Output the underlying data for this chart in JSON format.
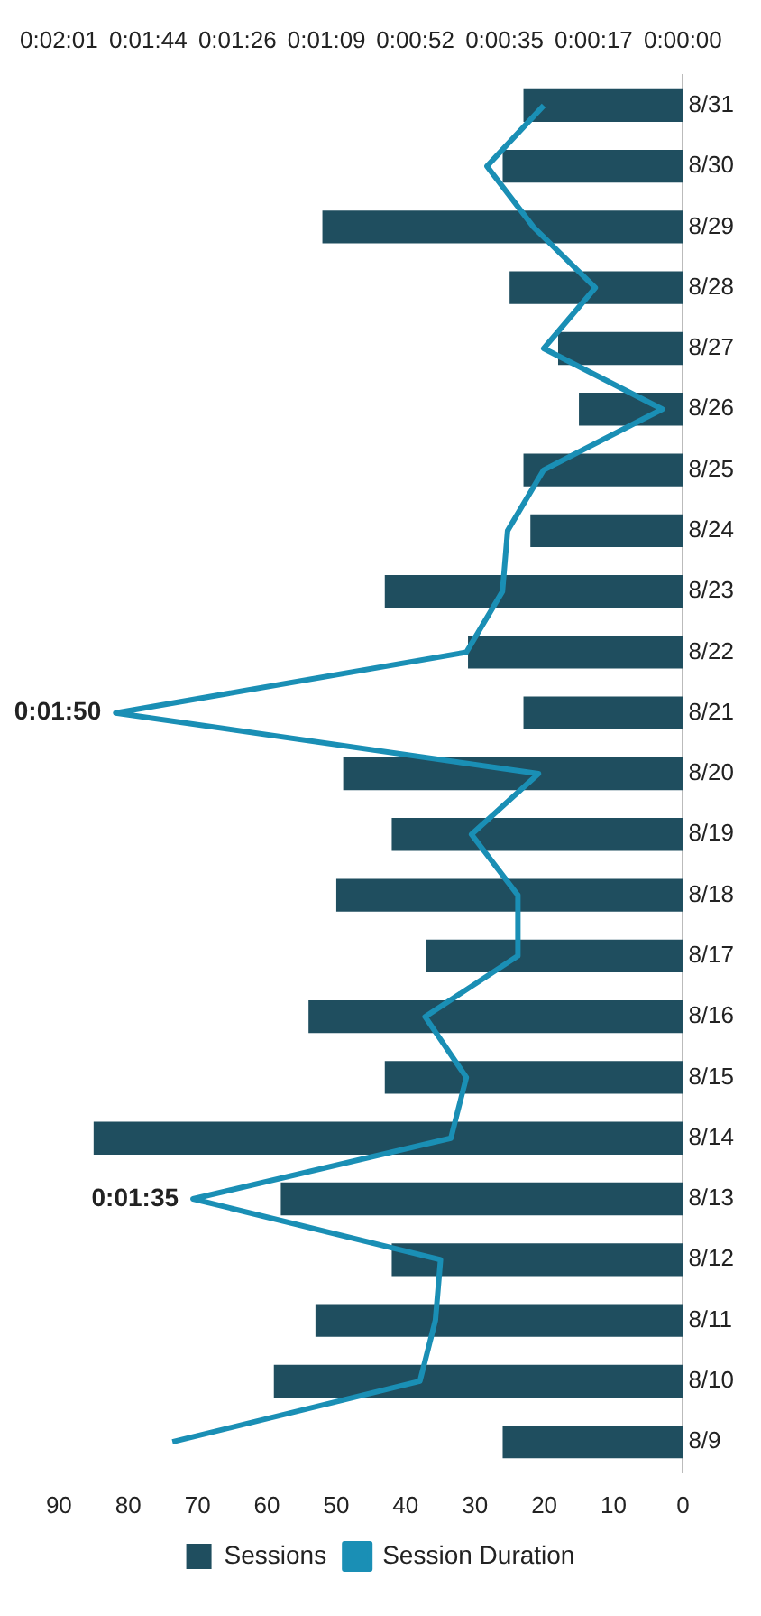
{
  "chart_data": {
    "type": "bar",
    "orientation": "horizontal",
    "categories": [
      "8/31",
      "8/30",
      "8/29",
      "8/28",
      "8/27",
      "8/26",
      "8/25",
      "8/24",
      "8/23",
      "8/22",
      "8/21",
      "8/20",
      "8/19",
      "8/18",
      "8/17",
      "8/16",
      "8/15",
      "8/14",
      "8/13",
      "8/12",
      "8/11",
      "8/10",
      "8/9"
    ],
    "series": [
      {
        "name": "Sessions",
        "color": "#1f4e5f",
        "values": [
          23,
          26,
          52,
          25,
          18,
          15,
          23,
          22,
          43,
          31,
          23,
          49,
          42,
          50,
          37,
          54,
          43,
          85,
          58,
          42,
          53,
          59,
          26
        ]
      },
      {
        "name": "Session Duration",
        "type": "line",
        "axis": "x2",
        "color": "#1a8fb5",
        "marker": "none",
        "values": [
          27,
          38,
          29,
          17,
          27,
          4,
          27,
          34,
          35,
          42,
          110,
          28,
          41,
          32,
          32,
          50,
          42,
          45,
          95,
          47,
          48,
          51,
          99
        ],
        "value_labels": [
          null,
          null,
          null,
          null,
          null,
          null,
          null,
          null,
          null,
          null,
          "0:01:50",
          null,
          null,
          null,
          null,
          null,
          null,
          null,
          "0:01:35",
          null,
          null,
          null,
          null
        ]
      }
    ],
    "xlim": [
      90,
      0
    ],
    "xticks": [
      90,
      80,
      70,
      60,
      50,
      40,
      30,
      20,
      10,
      0
    ],
    "x2lim": [
      121,
      0
    ],
    "x2ticks": [
      {
        "value": 121,
        "label": "0:02:01"
      },
      {
        "value": 103.7,
        "label": "0:01:44"
      },
      {
        "value": 86.4,
        "label": "0:01:26"
      },
      {
        "value": 69.1,
        "label": "0:01:09"
      },
      {
        "value": 51.9,
        "label": "0:00:52"
      },
      {
        "value": 34.6,
        "label": "0:00:35"
      },
      {
        "value": 17.3,
        "label": "0:00:17"
      },
      {
        "value": 0,
        "label": "0:00:00"
      }
    ],
    "grid": false,
    "legend": "bottom"
  }
}
